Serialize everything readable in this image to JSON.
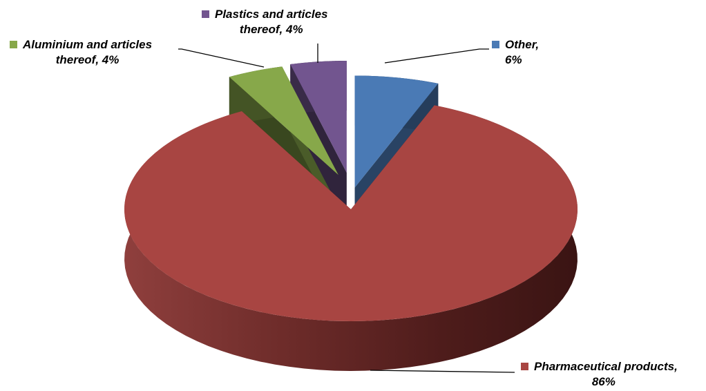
{
  "chart_data": {
    "type": "pie",
    "style": "3d-exploded",
    "slices": [
      {
        "label_line1": "Other,",
        "label_line2": "6%",
        "category": "Other",
        "value": 6,
        "color": "#4a7ab5"
      },
      {
        "label_line1": "Pharmaceutical products,",
        "label_line2": "86%",
        "category": "Pharmaceutical products",
        "value": 86,
        "color": "#a84542"
      },
      {
        "label_line1": "Aluminium and articles",
        "label_line2": "thereof, 4%",
        "category": "Aluminium and articles thereof",
        "value": 4,
        "color": "#87a84a"
      },
      {
        "label_line1": "Plastics and articles",
        "label_line2": "thereof, 4%",
        "category": "Plastics and articles thereof",
        "value": 4,
        "color": "#72558f"
      }
    ]
  }
}
